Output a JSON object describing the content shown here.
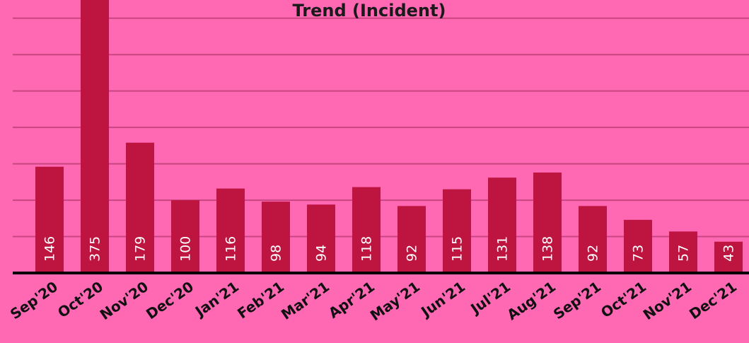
{
  "chart_data": {
    "type": "bar",
    "title": "Trend (Incident)",
    "categories": [
      "Sep'20",
      "Oct'20",
      "Nov'20",
      "Dec'20",
      "Jan'21",
      "Feb'21",
      "Mar'21",
      "Apr'21",
      "May'21",
      "Jun'21",
      "Jul'21",
      "Aug'21",
      "Sep'21",
      "Oct'21",
      "Nov'21",
      "Dec'21"
    ],
    "values": [
      146,
      375,
      179,
      100,
      116,
      98,
      94,
      118,
      92,
      115,
      131,
      138,
      92,
      73,
      57,
      43
    ],
    "color": "#be1540",
    "ylim": [
      0,
      375
    ],
    "yticks": [
      0,
      50,
      100,
      150,
      200,
      250,
      300,
      350
    ],
    "grid": true
  }
}
